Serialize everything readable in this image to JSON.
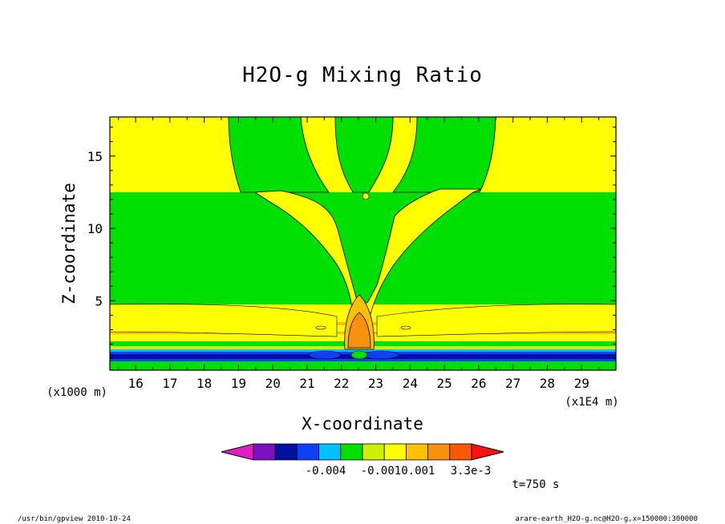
{
  "chart_data": {
    "type": "contour",
    "title": "H2O-g Mixing Ratio",
    "xlabel": "X-coordinate",
    "ylabel": "Z-coordinate",
    "x_unit": "(x1E4 m)",
    "y_unit": "(x1000 m)",
    "xlim": [
      15.25,
      30.0
    ],
    "ylim": [
      0.2,
      17.7
    ],
    "xticks": [
      16,
      17,
      18,
      19,
      20,
      21,
      22,
      23,
      24,
      25,
      26,
      27,
      28,
      29
    ],
    "yticks": [
      5,
      10,
      15
    ],
    "colorbar": {
      "colors": [
        "#e020c0",
        "#7a10c0",
        "#0010a0",
        "#1040ff",
        "#00c0ff",
        "#00e000",
        "#ccf000",
        "#ffff00",
        "#ffc000",
        "#f89010",
        "#ff5800",
        "#ff1010"
      ],
      "labels": [
        "-0.004",
        "-0.0010.001",
        "3.3e-3"
      ]
    },
    "time_label": "t=750 s"
  },
  "footer": {
    "left": "/usr/bin/gpview  2010-10-24",
    "right": "arare-earth_H2O-g.nc@H2O-g,x=150000:300000"
  },
  "colors": {
    "yellow": "#ffff00",
    "green": "#00e000",
    "orange": "#f89010",
    "dark_orange": "#ff9d00",
    "dark_blue": "#0010a0",
    "blue": "#1040ff",
    "cyan": "#00c0ff",
    "light_yellow": "#ccf000"
  }
}
